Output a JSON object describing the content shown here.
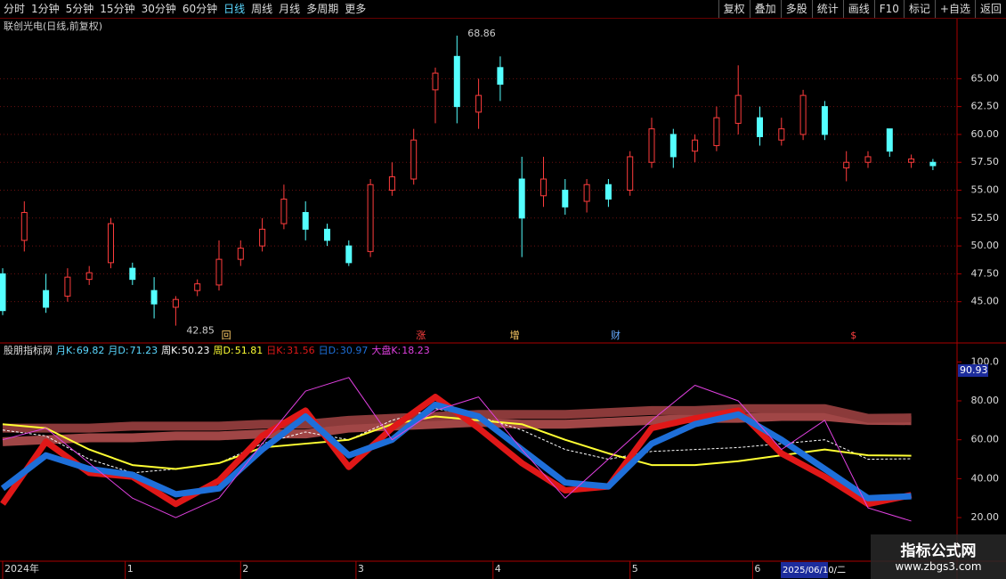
{
  "toolbar": {
    "left": [
      "分时",
      "1分钟",
      "5分钟",
      "15分钟",
      "30分钟",
      "60分钟",
      "日线",
      "周线",
      "月线",
      "多周期",
      "更多"
    ],
    "active": 6,
    "right": [
      "复权",
      "叠加",
      "多股",
      "统计",
      "画线",
      "F10",
      "标记",
      "+自选",
      "返回"
    ]
  },
  "watermark": {
    "title": "指标公式网",
    "url": "www.zbgs3.com"
  },
  "cursor_date": "2025/06/10/二",
  "chart_data": [
    {
      "type": "candlestick",
      "title": "联创光电(日线,前复权)",
      "x": [
        0,
        3,
        6,
        9,
        12,
        15,
        18,
        21,
        24,
        27,
        30,
        33,
        36,
        39,
        42,
        45,
        48,
        51,
        54,
        57,
        60,
        63,
        66,
        69,
        72,
        75,
        78,
        81,
        84,
        87,
        90,
        93,
        96,
        99,
        102,
        105,
        108,
        111,
        114,
        117,
        120,
        123,
        126,
        129
      ],
      "open": [
        47.5,
        50.5,
        46,
        45.5,
        47.0,
        48.5,
        48,
        46,
        44.5,
        46,
        46.5,
        48.8,
        50,
        52,
        53,
        51.5,
        50,
        49.5,
        55,
        56,
        64,
        67,
        62,
        66,
        56,
        54.5,
        55,
        54,
        55.5,
        55,
        57.5,
        60,
        58.5,
        59,
        61,
        61.5,
        59.5,
        60,
        62.5,
        57,
        57.5,
        60.5,
        57.5,
        57.5
      ],
      "high": [
        48,
        54.0,
        47.5,
        48,
        48.2,
        52.5,
        48.5,
        47.2,
        45.5,
        47,
        50.5,
        50.5,
        52.5,
        55.5,
        54,
        52,
        50.5,
        56,
        57.5,
        60.5,
        66,
        68.86,
        65,
        67,
        58,
        58,
        56,
        56,
        56,
        58.5,
        61.5,
        60.5,
        60,
        62.5,
        66.2,
        62.5,
        61.5,
        64,
        63,
        58.5,
        58.5,
        60.5,
        58.2,
        57.8
      ],
      "low": [
        43.8,
        49.5,
        44,
        45,
        46.5,
        48,
        46.5,
        43.5,
        42.85,
        45.5,
        46,
        48.2,
        49.5,
        51.5,
        50.5,
        50,
        48.2,
        49,
        54.5,
        55.5,
        61,
        61,
        60.5,
        63,
        49,
        53.5,
        52.8,
        53,
        53.5,
        54.5,
        57,
        57,
        57.5,
        58.5,
        60,
        59,
        59,
        59.5,
        59.5,
        55.8,
        57,
        58,
        57,
        56.8
      ],
      "close": [
        44.2,
        53.0,
        44.5,
        47.2,
        47.6,
        52,
        47,
        44.8,
        45.2,
        46.6,
        48.8,
        49.8,
        51.5,
        54.2,
        51.5,
        50.5,
        48.5,
        55.5,
        56.2,
        59.5,
        65.5,
        62.5,
        63.5,
        64.5,
        52.5,
        56,
        53.5,
        55.5,
        54.2,
        58,
        60.5,
        58,
        59.5,
        61.5,
        63.5,
        59.8,
        60.5,
        63.5,
        60,
        57.5,
        58,
        58.5,
        57.8,
        57.2
      ],
      "up_color": "#ff3c3c",
      "down_color": "#54ffff",
      "annotations": [
        {
          "x": 63,
          "value": 68.86
        },
        {
          "x": 24,
          "value": 42.85
        }
      ],
      "events": [
        {
          "x": 31,
          "label": "回",
          "color": "#ffcc66"
        },
        {
          "x": 58,
          "label": "涨",
          "color": "#ff4040"
        },
        {
          "x": 71,
          "label": "增",
          "color": "#ffcc66"
        },
        {
          "x": 85,
          "label": "财",
          "color": "#66aaff"
        },
        {
          "x": 118,
          "label": "$",
          "color": "#ff4040"
        }
      ],
      "xlim": [
        0,
        130
      ],
      "ylim": [
        41.3,
        70.3
      ],
      "yticks": [
        {
          "value": 45,
          "label": "45.00"
        },
        {
          "value": 47.5,
          "label": "47.50"
        },
        {
          "value": 50,
          "label": "50.00"
        },
        {
          "value": 52.5,
          "label": "52.50"
        },
        {
          "value": 55,
          "label": "55.00"
        },
        {
          "value": 57.5,
          "label": "57.50"
        },
        {
          "value": 60,
          "label": "60.00"
        },
        {
          "value": 62.5,
          "label": "62.50"
        },
        {
          "value": 65,
          "label": "65.00"
        }
      ],
      "grid": true
    },
    {
      "type": "line",
      "title": "股朋指标网",
      "x": [
        0,
        6,
        12,
        18,
        24,
        30,
        36,
        42,
        48,
        54,
        60,
        66,
        72,
        78,
        84,
        90,
        96,
        102,
        108,
        114,
        120,
        126
      ],
      "series": [
        {
          "name": "月K:",
          "color": "#a04646",
          "width": 10,
          "values": [
            59,
            60,
            61,
            61,
            62,
            62,
            63,
            63,
            66,
            67,
            68,
            69,
            68,
            68,
            69,
            70,
            71,
            71,
            72,
            72,
            70,
            69.82
          ]
        },
        {
          "name": "月D:",
          "color": "#8b3a3a",
          "width": 10,
          "values": [
            66,
            66,
            66,
            67,
            67,
            67,
            68,
            68,
            70,
            71,
            72,
            73,
            73,
            73,
            74,
            75,
            75,
            76,
            76,
            76,
            71,
            71.23
          ]
        },
        {
          "name": "周K:",
          "color": "#ffffff",
          "width": 1,
          "dash": true,
          "values": [
            65,
            62,
            50,
            43,
            45,
            48,
            58,
            64,
            60,
            70,
            76,
            72,
            65,
            55,
            50,
            54,
            55,
            56,
            58,
            60,
            50,
            50.23
          ]
        },
        {
          "name": "周D:",
          "color": "#ffff33",
          "width": 2,
          "values": [
            68,
            66,
            55,
            47,
            45,
            48,
            56,
            58,
            60,
            68,
            72,
            70,
            68,
            60,
            53,
            47,
            47,
            49,
            52,
            55,
            52,
            51.81
          ]
        },
        {
          "name": "日K:",
          "color": "#e01818",
          "width": 7,
          "values": [
            27,
            59,
            43,
            41,
            27,
            39,
            62,
            75,
            46,
            66,
            82,
            66,
            48,
            34,
            36,
            66,
            71,
            75,
            53,
            41,
            27,
            31.56
          ]
        },
        {
          "name": "日D:",
          "color": "#1e6fd9",
          "width": 7,
          "values": [
            35,
            52,
            45,
            42,
            32,
            35,
            55,
            72,
            52,
            60,
            78,
            72,
            55,
            38,
            36,
            58,
            68,
            73,
            60,
            45,
            30,
            30.97
          ]
        },
        {
          "name": "大盘K:",
          "color": "#e040e0",
          "width": 1,
          "values": [
            60,
            66,
            48,
            30,
            20,
            30,
            58,
            85,
            92,
            60,
            75,
            82,
            55,
            30,
            50,
            70,
            88,
            80,
            55,
            70,
            25,
            18.23
          ]
        }
      ],
      "cursor_label": "90.93",
      "xlim": [
        0,
        130
      ],
      "ylim": [
        -2.4,
        109.3
      ],
      "yticks": [
        {
          "value": 20,
          "label": "20.00"
        },
        {
          "value": 40,
          "label": "40.00"
        },
        {
          "value": 60,
          "label": "60.00"
        },
        {
          "value": 80,
          "label": "80.00"
        },
        {
          "value": 100,
          "label": "100.0"
        }
      ],
      "xticks": [
        {
          "value": 0,
          "label": "2024年"
        },
        {
          "value": 17,
          "label": "1"
        },
        {
          "value": 33,
          "label": "2"
        },
        {
          "value": 49,
          "label": "3"
        },
        {
          "value": 68,
          "label": "4"
        },
        {
          "value": 87,
          "label": "5"
        },
        {
          "value": 104,
          "label": "6"
        }
      ]
    }
  ]
}
